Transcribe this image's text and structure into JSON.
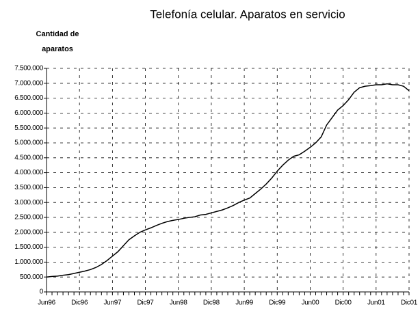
{
  "chart_data": {
    "type": "line",
    "title": "Telefonía celular. Aparatos en servicio",
    "ylabel": [
      "Cantidad de",
      "aparatos"
    ],
    "categories": [
      "Jun96",
      null,
      null,
      null,
      null,
      null,
      "Dic96",
      null,
      null,
      null,
      null,
      null,
      "Jun97",
      null,
      null,
      null,
      null,
      null,
      "Dic97",
      null,
      null,
      null,
      null,
      null,
      "Jun98",
      null,
      null,
      null,
      null,
      null,
      "Dic98",
      null,
      null,
      null,
      null,
      null,
      "Jun99",
      null,
      null,
      null,
      null,
      null,
      "Dic99",
      null,
      null,
      null,
      null,
      null,
      "Jun00",
      null,
      null,
      null,
      null,
      null,
      "Dic00",
      null,
      null,
      null,
      null,
      null,
      "Jun01",
      null,
      null,
      null,
      null,
      null,
      "Dic01"
    ],
    "series": [
      {
        "name": "Aparatos en servicio",
        "color": "#000000",
        "values": [
          500000,
          520000,
          530000,
          560000,
          580000,
          620000,
          660000,
          700000,
          750000,
          820000,
          920000,
          1050000,
          1200000,
          1350000,
          1550000,
          1750000,
          1880000,
          2000000,
          2080000,
          2150000,
          2230000,
          2300000,
          2360000,
          2400000,
          2430000,
          2470000,
          2500000,
          2520000,
          2580000,
          2600000,
          2650000,
          2700000,
          2750000,
          2820000,
          2900000,
          3000000,
          3080000,
          3150000,
          3300000,
          3450000,
          3620000,
          3820000,
          4050000,
          4250000,
          4420000,
          4550000,
          4600000,
          4720000,
          4850000,
          5000000,
          5200000,
          5600000,
          5850000,
          6100000,
          6250000,
          6450000,
          6700000,
          6850000,
          6900000,
          6920000,
          6950000,
          6950000,
          6980000,
          6950000,
          6950000,
          6900000,
          6750000
        ]
      }
    ],
    "ylim": [
      0,
      7500000
    ],
    "yticks": [
      0,
      {
        "value": 500000,
        "label": "500.000"
      },
      {
        "value": 1000000,
        "label": "1.000.000"
      },
      {
        "value": 1500000,
        "label": "1.500.000"
      },
      {
        "value": 2000000,
        "label": "2.000.000"
      },
      {
        "value": 2500000,
        "label": "2.500.000"
      },
      {
        "value": 3000000,
        "label": "3.000.000"
      },
      {
        "value": 3500000,
        "label": "3.500.000"
      },
      {
        "value": 4000000,
        "label": "4.000.000"
      },
      {
        "value": 4500000,
        "label": "4.500.000"
      },
      {
        "value": 5000000,
        "label": "5.000.000"
      },
      {
        "value": 5500000,
        "label": "5.500.000"
      },
      {
        "value": 6000000,
        "label": "6.000.000"
      },
      {
        "value": 6500000,
        "label": "6.500.000"
      },
      {
        "value": 7000000,
        "label": "7.000.000"
      },
      {
        "value": 7500000,
        "label": "7.500.000"
      }
    ],
    "grid": true
  }
}
